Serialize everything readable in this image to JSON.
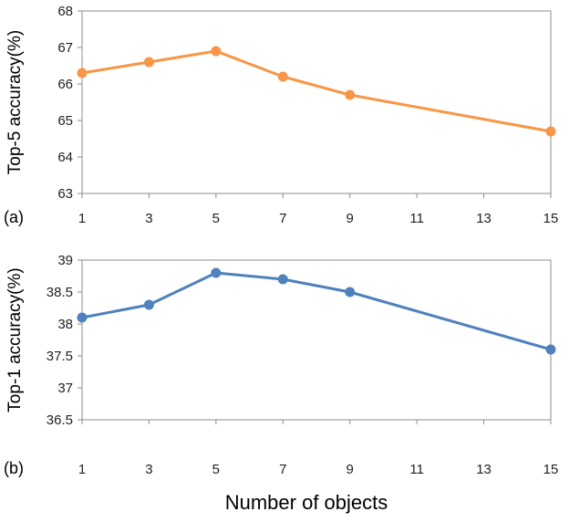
{
  "chart_data": [
    {
      "type": "line",
      "panel_label": "(a)",
      "ylabel": "Top-5 accuracy(%)",
      "x": [
        1,
        3,
        5,
        7,
        9,
        15
      ],
      "xticks": [
        "1",
        "3",
        "5",
        "7",
        "9",
        "11",
        "13",
        "15"
      ],
      "yticks": [
        "63",
        "64",
        "65",
        "66",
        "67",
        "68"
      ],
      "xlim": [
        1,
        15
      ],
      "ylim": [
        63,
        68
      ],
      "grid": false,
      "series": [
        {
          "values": [
            66.3,
            66.6,
            66.9,
            66.2,
            65.7,
            64.7
          ],
          "color": "#F79646"
        }
      ]
    },
    {
      "type": "line",
      "panel_label": "(b)",
      "ylabel": "Top-1 accuracy(%)",
      "x": [
        1,
        3,
        5,
        7,
        9,
        15
      ],
      "xticks": [
        "1",
        "3",
        "5",
        "7",
        "9",
        "11",
        "13",
        "15"
      ],
      "yticks": [
        "36.5",
        "37",
        "37.5",
        "38",
        "38.5",
        "39"
      ],
      "xlim": [
        1,
        15
      ],
      "ylim": [
        36.5,
        39
      ],
      "grid": false,
      "series": [
        {
          "values": [
            38.1,
            38.3,
            38.8,
            38.7,
            38.5,
            37.6
          ],
          "color": "#4F81BD"
        }
      ]
    }
  ],
  "xlabel": "Number of objects"
}
